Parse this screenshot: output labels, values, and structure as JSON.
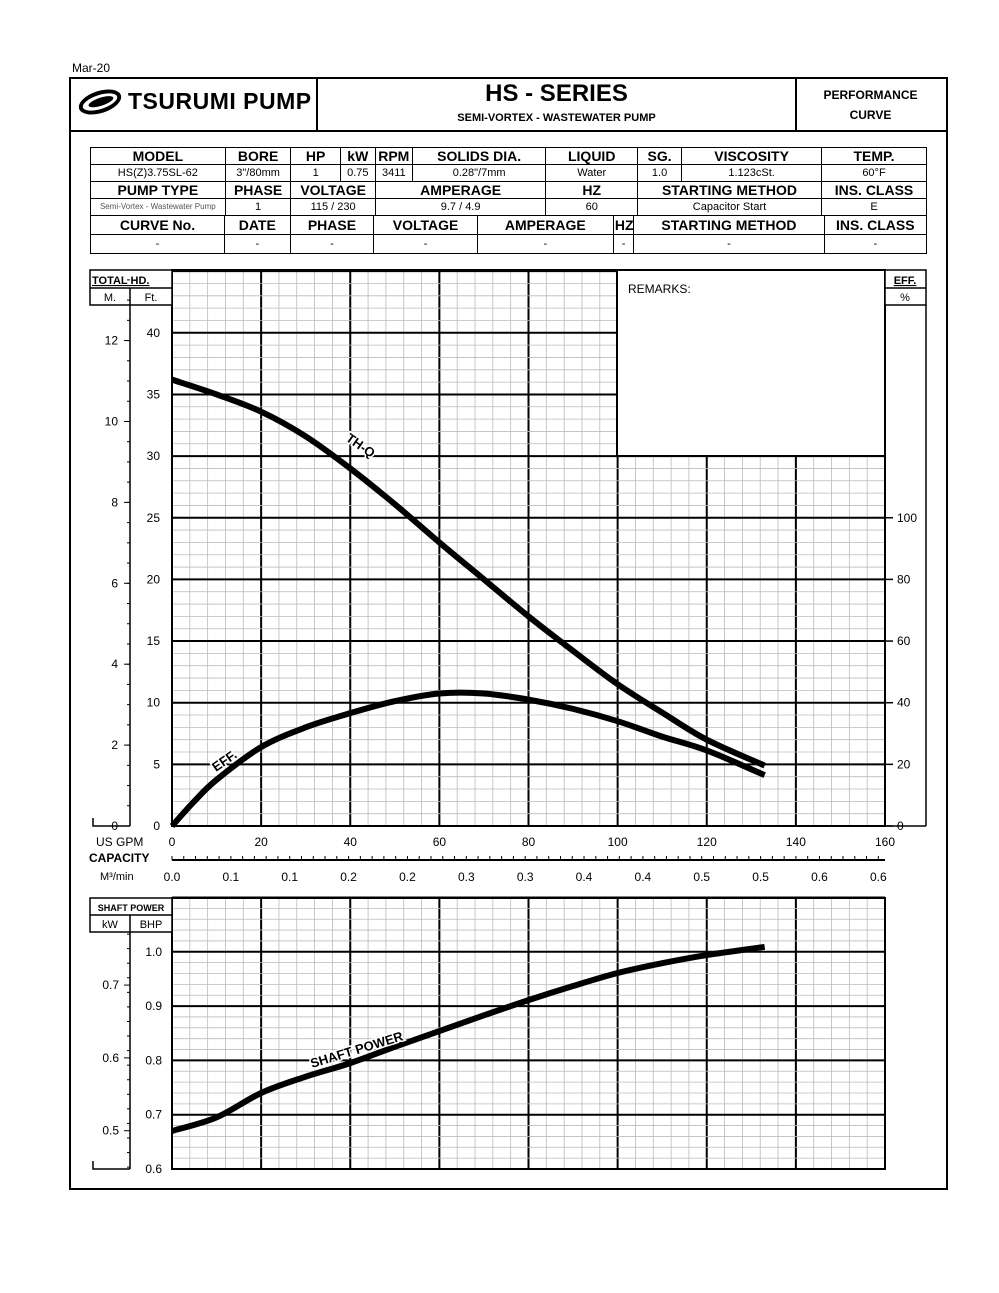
{
  "date": "Mar-20",
  "header": {
    "brand": "TSURUMI PUMP",
    "title": "HS - SERIES",
    "subtitle": "SEMI-VORTEX - WASTEWATER PUMP",
    "performance_line1": "PERFORMANCE",
    "performance_line2": "CURVE"
  },
  "info_table": {
    "row1_headers": [
      "MODEL",
      "BORE",
      "HP",
      "kW",
      "RPM",
      "SOLIDS DIA.",
      "LIQUID",
      "SG.",
      "VISCOSITY",
      "TEMP."
    ],
    "row1_values": [
      "HS(Z)3.75SL-62",
      "3\"/80mm",
      "1",
      "0.75",
      "3411",
      "0.28\"/7mm",
      "Water",
      "1.0",
      "1.123cSt.",
      "60°F"
    ],
    "row2_headers": [
      "PUMP TYPE",
      "PHASE",
      "VOLTAGE",
      "AMPERAGE",
      "HZ",
      "STARTING METHOD",
      "INS. CLASS"
    ],
    "row2_values": [
      "Semi-Vortex - Wastewater Pump",
      "1",
      "115 / 230",
      "9.7 / 4.9",
      "60",
      "Capacitor Start",
      "E"
    ],
    "row3_headers": [
      "CURVE No.",
      "DATE",
      "PHASE",
      "VOLTAGE",
      "AMPERAGE",
      "HZ",
      "STARTING METHOD",
      "INS. CLASS"
    ],
    "row3_values": [
      "-",
      "-",
      "-",
      "-",
      "-",
      "-",
      "-",
      "-"
    ]
  },
  "remarks_label": "REMARKS:",
  "capacity": {
    "label": "CAPACITY",
    "gpm_unit": "US GPM",
    "m3_unit": "M³/min",
    "gpm_ticks": [
      "0",
      "20",
      "40",
      "60",
      "80",
      "100",
      "120",
      "140",
      "160"
    ],
    "m3_ticks": [
      "0.0",
      "0.1",
      "0.1",
      "0.2",
      "0.2",
      "0.3",
      "0.3",
      "0.4",
      "0.4",
      "0.5",
      "0.5",
      "0.6",
      "0.6"
    ]
  },
  "chart_data": [
    {
      "type": "line",
      "title": "",
      "xlabel": "CAPACITY (US GPM)",
      "xlim": [
        0,
        160
      ],
      "left_axis": {
        "label": "TOTAL HD.",
        "units": [
          "M.",
          "Ft."
        ],
        "ft_ticks": [
          "0",
          "5",
          "10",
          "15",
          "20",
          "25",
          "30",
          "35",
          "40"
        ],
        "m_ticks": [
          "0",
          "2",
          "4",
          "6",
          "8",
          "10",
          "12"
        ],
        "ft_range": [
          0,
          45
        ]
      },
      "right_axis": {
        "label": "EFF.",
        "unit": "%",
        "ticks": [
          "0",
          "20",
          "40",
          "60",
          "80",
          "100"
        ],
        "range": [
          0,
          180
        ]
      },
      "grid": true,
      "series": [
        {
          "name": "TH-Q",
          "axis": "ft",
          "x": [
            0,
            10,
            20,
            30,
            40,
            50,
            60,
            70,
            80,
            90,
            100,
            110,
            120,
            133
          ],
          "y": [
            36.2,
            35.0,
            33.6,
            31.6,
            29.0,
            26.1,
            23.0,
            20.0,
            17.0,
            14.2,
            11.5,
            9.2,
            7.0,
            4.9
          ]
        },
        {
          "name": "EFF.",
          "axis": "percent",
          "x": [
            0,
            5,
            10,
            20,
            30,
            40,
            50,
            60,
            70,
            80,
            90,
            100,
            110,
            120,
            133
          ],
          "y": [
            0,
            8,
            15,
            25.6,
            32,
            36.6,
            40.5,
            43,
            43,
            41,
            38,
            34,
            29,
            24.5,
            16.5
          ]
        }
      ]
    },
    {
      "type": "line",
      "title": "",
      "xlim": [
        0,
        160
      ],
      "left_axis": {
        "label": "SHAFT POWER",
        "units": [
          "kW",
          "BHP"
        ],
        "bhp_ticks": [
          "0.6",
          "0.7",
          "0.8",
          "0.9",
          "1.0"
        ],
        "kw_ticks": [
          "0.5",
          "0.6",
          "0.7"
        ],
        "bhp_range": [
          0.6,
          1.1
        ]
      },
      "grid": true,
      "series": [
        {
          "name": "SHAFT POWER",
          "axis": "bhp",
          "x": [
            0,
            10,
            20,
            30,
            40,
            50,
            60,
            70,
            80,
            90,
            100,
            110,
            120,
            133
          ],
          "y": [
            0.67,
            0.695,
            0.74,
            0.77,
            0.795,
            0.825,
            0.854,
            0.883,
            0.911,
            0.937,
            0.961,
            0.979,
            0.994,
            1.009
          ]
        }
      ]
    }
  ]
}
